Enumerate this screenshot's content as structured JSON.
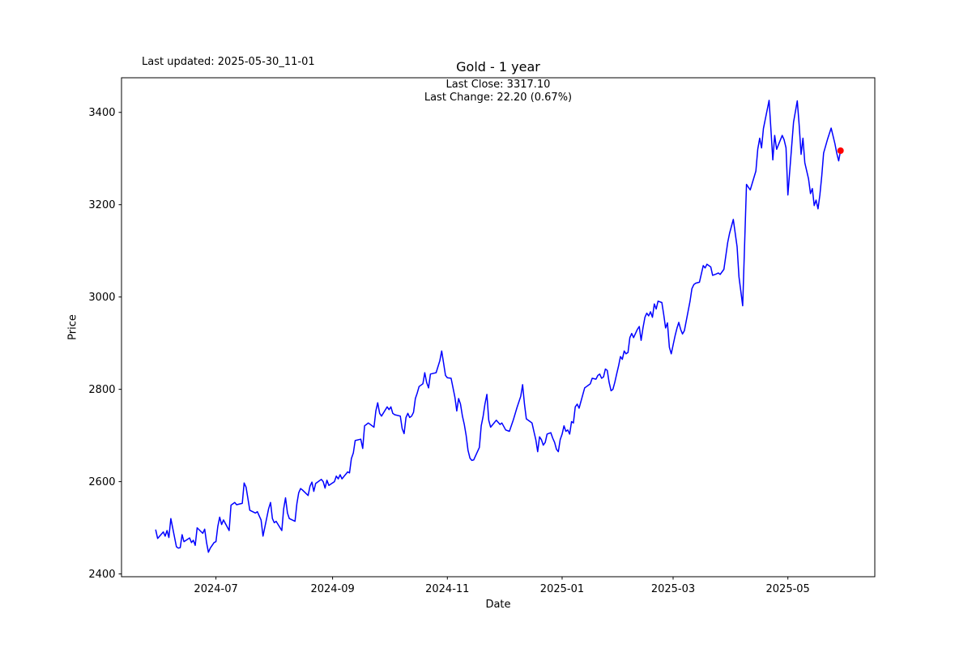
{
  "header": {
    "last_updated": "Last updated: 2025-05-30_11-01",
    "title": "Gold - 1 year",
    "last_close": "Last Close: 3317.10",
    "last_change": "Last Change: 22.20 (0.67%)"
  },
  "chart_data": {
    "type": "line",
    "title": "Gold - 1 year",
    "xlabel": "Date",
    "ylabel": "Price",
    "legend": null,
    "grid": false,
    "line_color": "#0000ff",
    "marker_color": "#ff0000",
    "last_close": 3317.1,
    "last_change": 22.2,
    "last_change_pct": 0.67,
    "ylim": [
      2394,
      3475
    ],
    "x_margin_frac": 0.05,
    "y_ticks": [
      2400,
      2600,
      2800,
      3000,
      3200,
      3400
    ],
    "x_ticks": [
      {
        "date": "2024-07-01",
        "label": "2024-07"
      },
      {
        "date": "2024-09-01",
        "label": "2024-09"
      },
      {
        "date": "2024-11-01",
        "label": "2024-11"
      },
      {
        "date": "2025-01-01",
        "label": "2025-01"
      },
      {
        "date": "2025-03-01",
        "label": "2025-03"
      },
      {
        "date": "2025-05-01",
        "label": "2025-05"
      }
    ],
    "points": [
      [
        "2024-05-30",
        2495
      ],
      [
        "2024-05-31",
        2477
      ],
      [
        "2024-06-03",
        2491
      ],
      [
        "2024-06-04",
        2482
      ],
      [
        "2024-06-05",
        2494
      ],
      [
        "2024-06-06",
        2479
      ],
      [
        "2024-06-07",
        2520
      ],
      [
        "2024-06-10",
        2459
      ],
      [
        "2024-06-11",
        2456
      ],
      [
        "2024-06-12",
        2457
      ],
      [
        "2024-06-13",
        2485
      ],
      [
        "2024-06-14",
        2470
      ],
      [
        "2024-06-17",
        2478
      ],
      [
        "2024-06-18",
        2468
      ],
      [
        "2024-06-19",
        2473
      ],
      [
        "2024-06-20",
        2462
      ],
      [
        "2024-06-21",
        2500
      ],
      [
        "2024-06-24",
        2488
      ],
      [
        "2024-06-25",
        2497
      ],
      [
        "2024-06-26",
        2468
      ],
      [
        "2024-06-27",
        2447
      ],
      [
        "2024-06-28",
        2456
      ],
      [
        "2024-06-30",
        2468
      ],
      [
        "2024-07-01",
        2470
      ],
      [
        "2024-07-02",
        2503
      ],
      [
        "2024-07-03",
        2523
      ],
      [
        "2024-07-04",
        2507
      ],
      [
        "2024-07-05",
        2517
      ],
      [
        "2024-07-08",
        2494
      ],
      [
        "2024-07-09",
        2549
      ],
      [
        "2024-07-10",
        2552
      ],
      [
        "2024-07-11",
        2555
      ],
      [
        "2024-07-12",
        2550
      ],
      [
        "2024-07-15",
        2553
      ],
      [
        "2024-07-16",
        2597
      ],
      [
        "2024-07-17",
        2588
      ],
      [
        "2024-07-19",
        2538
      ],
      [
        "2024-07-22",
        2532
      ],
      [
        "2024-07-23",
        2535
      ],
      [
        "2024-07-24",
        2526
      ],
      [
        "2024-07-25",
        2517
      ],
      [
        "2024-07-26",
        2482
      ],
      [
        "2024-07-29",
        2541
      ],
      [
        "2024-07-30",
        2555
      ],
      [
        "2024-07-31",
        2520
      ],
      [
        "2024-08-01",
        2511
      ],
      [
        "2024-08-02",
        2514
      ],
      [
        "2024-08-05",
        2494
      ],
      [
        "2024-08-06",
        2541
      ],
      [
        "2024-08-07",
        2565
      ],
      [
        "2024-08-08",
        2532
      ],
      [
        "2024-08-09",
        2520
      ],
      [
        "2024-08-12",
        2514
      ],
      [
        "2024-08-13",
        2552
      ],
      [
        "2024-08-14",
        2576
      ],
      [
        "2024-08-15",
        2585
      ],
      [
        "2024-08-16",
        2582
      ],
      [
        "2024-08-19",
        2570
      ],
      [
        "2024-08-20",
        2590
      ],
      [
        "2024-08-21",
        2599
      ],
      [
        "2024-08-22",
        2579
      ],
      [
        "2024-08-23",
        2596
      ],
      [
        "2024-08-26",
        2605
      ],
      [
        "2024-08-27",
        2600
      ],
      [
        "2024-08-28",
        2586
      ],
      [
        "2024-08-29",
        2603
      ],
      [
        "2024-08-30",
        2592
      ],
      [
        "2024-09-02",
        2600
      ],
      [
        "2024-09-03",
        2612
      ],
      [
        "2024-09-04",
        2606
      ],
      [
        "2024-09-05",
        2615
      ],
      [
        "2024-09-06",
        2606
      ],
      [
        "2024-09-09",
        2621
      ],
      [
        "2024-09-10",
        2619
      ],
      [
        "2024-09-11",
        2650
      ],
      [
        "2024-09-12",
        2662
      ],
      [
        "2024-09-13",
        2689
      ],
      [
        "2024-09-16",
        2692
      ],
      [
        "2024-09-17",
        2672
      ],
      [
        "2024-09-18",
        2721
      ],
      [
        "2024-09-19",
        2724
      ],
      [
        "2024-09-20",
        2727
      ],
      [
        "2024-09-23",
        2718
      ],
      [
        "2024-09-24",
        2753
      ],
      [
        "2024-09-25",
        2771
      ],
      [
        "2024-09-26",
        2748
      ],
      [
        "2024-09-27",
        2742
      ],
      [
        "2024-09-30",
        2762
      ],
      [
        "2024-10-01",
        2756
      ],
      [
        "2024-10-02",
        2762
      ],
      [
        "2024-10-03",
        2748
      ],
      [
        "2024-10-04",
        2745
      ],
      [
        "2024-10-07",
        2742
      ],
      [
        "2024-10-08",
        2715
      ],
      [
        "2024-10-09",
        2704
      ],
      [
        "2024-10-10",
        2739
      ],
      [
        "2024-10-11",
        2748
      ],
      [
        "2024-10-12",
        2739
      ],
      [
        "2024-10-13",
        2742
      ],
      [
        "2024-10-14",
        2750
      ],
      [
        "2024-10-15",
        2780
      ],
      [
        "2024-10-16",
        2792
      ],
      [
        "2024-10-17",
        2806
      ],
      [
        "2024-10-19",
        2812
      ],
      [
        "2024-10-20",
        2836
      ],
      [
        "2024-10-21",
        2815
      ],
      [
        "2024-10-22",
        2803
      ],
      [
        "2024-10-23",
        2833
      ],
      [
        "2024-10-25",
        2835
      ],
      [
        "2024-10-26",
        2836
      ],
      [
        "2024-10-28",
        2862
      ],
      [
        "2024-10-29",
        2883
      ],
      [
        "2024-10-31",
        2830
      ],
      [
        "2024-11-01",
        2825
      ],
      [
        "2024-11-03",
        2824
      ],
      [
        "2024-11-05",
        2783
      ],
      [
        "2024-11-06",
        2753
      ],
      [
        "2024-11-07",
        2780
      ],
      [
        "2024-11-08",
        2768
      ],
      [
        "2024-11-09",
        2742
      ],
      [
        "2024-11-10",
        2724
      ],
      [
        "2024-11-11",
        2700
      ],
      [
        "2024-11-12",
        2668
      ],
      [
        "2024-11-13",
        2651
      ],
      [
        "2024-11-14",
        2646
      ],
      [
        "2024-11-15",
        2647
      ],
      [
        "2024-11-18",
        2674
      ],
      [
        "2024-11-19",
        2721
      ],
      [
        "2024-11-20",
        2741
      ],
      [
        "2024-11-21",
        2768
      ],
      [
        "2024-11-22",
        2789
      ],
      [
        "2024-11-23",
        2733
      ],
      [
        "2024-11-24",
        2718
      ],
      [
        "2024-11-27",
        2733
      ],
      [
        "2024-11-29",
        2724
      ],
      [
        "2024-11-30",
        2727
      ],
      [
        "2024-12-02",
        2712
      ],
      [
        "2024-12-04",
        2709
      ],
      [
        "2024-12-06",
        2733
      ],
      [
        "2024-12-08",
        2760
      ],
      [
        "2024-12-10",
        2785
      ],
      [
        "2024-12-11",
        2810
      ],
      [
        "2024-12-12",
        2768
      ],
      [
        "2024-12-13",
        2736
      ],
      [
        "2024-12-15",
        2730
      ],
      [
        "2024-12-16",
        2727
      ],
      [
        "2024-12-17",
        2709
      ],
      [
        "2024-12-18",
        2691
      ],
      [
        "2024-12-19",
        2665
      ],
      [
        "2024-12-20",
        2697
      ],
      [
        "2024-12-21",
        2691
      ],
      [
        "2024-12-22",
        2679
      ],
      [
        "2024-12-23",
        2685
      ],
      [
        "2024-12-24",
        2703
      ],
      [
        "2024-12-26",
        2706
      ],
      [
        "2024-12-27",
        2694
      ],
      [
        "2024-12-28",
        2685
      ],
      [
        "2024-12-29",
        2670
      ],
      [
        "2024-12-30",
        2665
      ],
      [
        "2024-12-31",
        2691
      ],
      [
        "2025-01-01",
        2703
      ],
      [
        "2025-01-02",
        2721
      ],
      [
        "2025-01-03",
        2709
      ],
      [
        "2025-01-04",
        2712
      ],
      [
        "2025-01-05",
        2703
      ],
      [
        "2025-01-06",
        2730
      ],
      [
        "2025-01-07",
        2727
      ],
      [
        "2025-01-08",
        2762
      ],
      [
        "2025-01-09",
        2768
      ],
      [
        "2025-01-10",
        2759
      ],
      [
        "2025-01-13",
        2803
      ],
      [
        "2025-01-14",
        2806
      ],
      [
        "2025-01-15",
        2809
      ],
      [
        "2025-01-16",
        2812
      ],
      [
        "2025-01-17",
        2824
      ],
      [
        "2025-01-19",
        2822
      ],
      [
        "2025-01-20",
        2830
      ],
      [
        "2025-01-21",
        2833
      ],
      [
        "2025-01-22",
        2824
      ],
      [
        "2025-01-23",
        2827
      ],
      [
        "2025-01-24",
        2844
      ],
      [
        "2025-01-25",
        2841
      ],
      [
        "2025-01-26",
        2815
      ],
      [
        "2025-01-27",
        2797
      ],
      [
        "2025-01-28",
        2800
      ],
      [
        "2025-01-29",
        2815
      ],
      [
        "2025-01-30",
        2833
      ],
      [
        "2025-01-31",
        2851
      ],
      [
        "2025-02-01",
        2871
      ],
      [
        "2025-02-02",
        2865
      ],
      [
        "2025-02-03",
        2883
      ],
      [
        "2025-02-04",
        2877
      ],
      [
        "2025-02-05",
        2880
      ],
      [
        "2025-02-06",
        2912
      ],
      [
        "2025-02-07",
        2921
      ],
      [
        "2025-02-08",
        2912
      ],
      [
        "2025-02-10",
        2930
      ],
      [
        "2025-02-11",
        2936
      ],
      [
        "2025-02-12",
        2906
      ],
      [
        "2025-02-13",
        2933
      ],
      [
        "2025-02-14",
        2956
      ],
      [
        "2025-02-15",
        2965
      ],
      [
        "2025-02-16",
        2959
      ],
      [
        "2025-02-17",
        2968
      ],
      [
        "2025-02-18",
        2956
      ],
      [
        "2025-02-19",
        2985
      ],
      [
        "2025-02-20",
        2974
      ],
      [
        "2025-02-21",
        2991
      ],
      [
        "2025-02-23",
        2988
      ],
      [
        "2025-02-24",
        2962
      ],
      [
        "2025-02-25",
        2933
      ],
      [
        "2025-02-26",
        2944
      ],
      [
        "2025-02-27",
        2891
      ],
      [
        "2025-02-28",
        2877
      ],
      [
        "2025-03-02",
        2915
      ],
      [
        "2025-03-03",
        2932
      ],
      [
        "2025-03-04",
        2945
      ],
      [
        "2025-03-05",
        2930
      ],
      [
        "2025-03-06",
        2920
      ],
      [
        "2025-03-07",
        2927
      ],
      [
        "2025-03-10",
        2991
      ],
      [
        "2025-03-11",
        3018
      ],
      [
        "2025-03-12",
        3027
      ],
      [
        "2025-03-13",
        3030
      ],
      [
        "2025-03-15",
        3032
      ],
      [
        "2025-03-17",
        3068
      ],
      [
        "2025-03-18",
        3063
      ],
      [
        "2025-03-19",
        3071
      ],
      [
        "2025-03-21",
        3065
      ],
      [
        "2025-03-22",
        3047
      ],
      [
        "2025-03-24",
        3050
      ],
      [
        "2025-03-25",
        3052
      ],
      [
        "2025-03-26",
        3049
      ],
      [
        "2025-03-28",
        3060
      ],
      [
        "2025-03-30",
        3118
      ],
      [
        "2025-03-31",
        3138
      ],
      [
        "2025-04-01",
        3153
      ],
      [
        "2025-04-02",
        3168
      ],
      [
        "2025-04-04",
        3109
      ],
      [
        "2025-04-05",
        3044
      ],
      [
        "2025-04-07",
        2981
      ],
      [
        "2025-04-09",
        3244
      ],
      [
        "2025-04-10",
        3238
      ],
      [
        "2025-04-11",
        3232
      ],
      [
        "2025-04-14",
        3273
      ],
      [
        "2025-04-15",
        3320
      ],
      [
        "2025-04-16",
        3344
      ],
      [
        "2025-04-17",
        3323
      ],
      [
        "2025-04-18",
        3365
      ],
      [
        "2025-04-21",
        3426
      ],
      [
        "2025-04-22",
        3362
      ],
      [
        "2025-04-23",
        3297
      ],
      [
        "2025-04-24",
        3350
      ],
      [
        "2025-04-25",
        3320
      ],
      [
        "2025-04-28",
        3350
      ],
      [
        "2025-04-29",
        3341
      ],
      [
        "2025-04-30",
        3323
      ],
      [
        "2025-05-01",
        3221
      ],
      [
        "2025-05-02",
        3273
      ],
      [
        "2025-05-04",
        3379
      ],
      [
        "2025-05-06",
        3425
      ],
      [
        "2025-05-07",
        3373
      ],
      [
        "2025-05-08",
        3309
      ],
      [
        "2025-05-09",
        3344
      ],
      [
        "2025-05-10",
        3291
      ],
      [
        "2025-05-12",
        3256
      ],
      [
        "2025-05-13",
        3224
      ],
      [
        "2025-05-14",
        3235
      ],
      [
        "2025-05-15",
        3198
      ],
      [
        "2025-05-16",
        3210
      ],
      [
        "2025-05-17",
        3191
      ],
      [
        "2025-05-18",
        3221
      ],
      [
        "2025-05-19",
        3262
      ],
      [
        "2025-05-20",
        3312
      ],
      [
        "2025-05-22",
        3341
      ],
      [
        "2025-05-24",
        3366
      ],
      [
        "2025-05-26",
        3332
      ],
      [
        "2025-05-27",
        3311
      ],
      [
        "2025-05-28",
        3294.9
      ],
      [
        "2025-05-29",
        3317.1
      ]
    ]
  }
}
